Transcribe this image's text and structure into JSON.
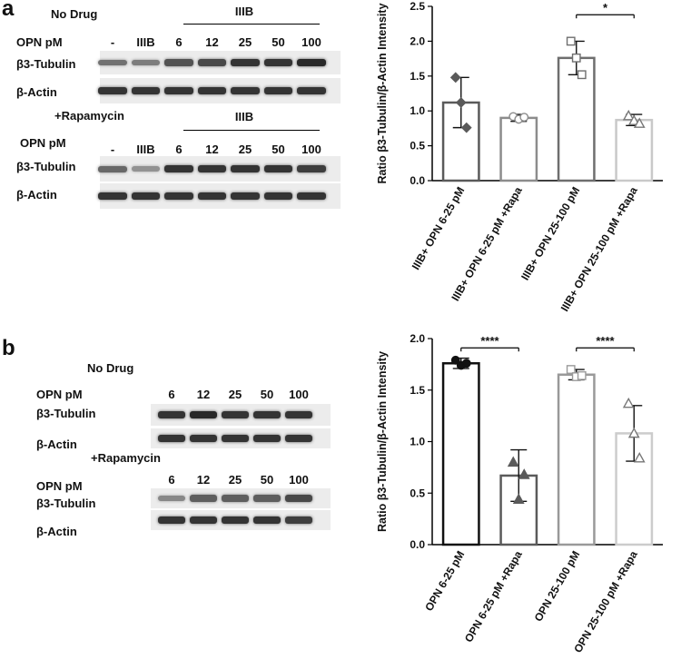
{
  "panel_a": {
    "letter": "a",
    "blot_top": {
      "title": "No Drug",
      "bracket_label": "IIIB",
      "row_opn": "OPN pM",
      "lanes": [
        "-",
        "IIIB",
        "6",
        "12",
        "25",
        "50",
        "100"
      ],
      "row_tubulin": "β3-Tubulin",
      "row_actin": "β-Actin",
      "tubulin_intensity": [
        0.55,
        0.5,
        0.7,
        0.75,
        0.85,
        0.85,
        0.9
      ],
      "actin_intensity": [
        0.85,
        0.85,
        0.85,
        0.85,
        0.85,
        0.85,
        0.85
      ]
    },
    "blot_bottom": {
      "title": "+Rapamycin",
      "bracket_label": "IIIB",
      "row_opn": "OPN pM",
      "lanes": [
        "-",
        "IIIB",
        "6",
        "12",
        "25",
        "50",
        "100"
      ],
      "row_tubulin": "β3-Tubulin",
      "row_actin": "β-Actin",
      "tubulin_intensity": [
        0.6,
        0.4,
        0.85,
        0.85,
        0.85,
        0.85,
        0.8
      ],
      "actin_intensity": [
        0.85,
        0.85,
        0.85,
        0.85,
        0.85,
        0.85,
        0.85
      ]
    }
  },
  "panel_b": {
    "letter": "b",
    "blot_top": {
      "title": "No Drug",
      "row_opn": "OPN pM",
      "lanes": [
        "6",
        "12",
        "25",
        "50",
        "100"
      ],
      "row_tubulin": "β3-Tubulin",
      "row_actin": "β-Actin",
      "tubulin_intensity": [
        0.85,
        0.9,
        0.85,
        0.85,
        0.85
      ],
      "actin_intensity": [
        0.85,
        0.85,
        0.85,
        0.85,
        0.85
      ]
    },
    "blot_bottom": {
      "title": "+Rapamycin",
      "row_opn": "OPN pM",
      "lanes": [
        "6",
        "12",
        "25",
        "50",
        "100"
      ],
      "row_tubulin": "β3-Tubulin",
      "row_actin": "β-Actin",
      "tubulin_intensity": [
        0.45,
        0.65,
        0.65,
        0.65,
        0.75
      ],
      "actin_intensity": [
        0.85,
        0.85,
        0.85,
        0.85,
        0.8
      ]
    }
  },
  "chart_data": [
    {
      "type": "bar",
      "ylabel": "Ratio β3-Tubulin/β-Actin Intensity",
      "ylim": [
        0,
        2.5
      ],
      "yticks": [
        "0.0",
        "0.5",
        "1.0",
        "1.5",
        "2.0",
        "2.5"
      ],
      "categories": [
        "IIIB+ OPN 6-25 pM",
        "IIIB+ OPN 6-25 pM +Rapa",
        "IIIB+ OPN 25-100 pM",
        "IIIB+ OPN 25-100 pM +Rapa"
      ],
      "values": [
        1.12,
        0.9,
        1.76,
        0.87
      ],
      "error": [
        0.36,
        0.05,
        0.24,
        0.08
      ],
      "points": [
        [
          1.48,
          1.12,
          0.76
        ],
        [
          0.92,
          0.88,
          0.91
        ],
        [
          2.0,
          1.76,
          1.52
        ],
        [
          0.93,
          0.86,
          0.82
        ]
      ],
      "markers": [
        "diamond",
        "circle",
        "square",
        "triangle"
      ],
      "colors": [
        "#5a5a5a",
        "#8c8c8c",
        "#6e6e6e",
        "#c9c9c9"
      ],
      "significance": [
        {
          "from": 2,
          "to": 3,
          "label": "*",
          "y": 2.38
        }
      ],
      "grid": false
    },
    {
      "type": "bar",
      "ylabel": "Ratio β3-Tubulin/β-Actin Intensity",
      "ylim": [
        0,
        2.0
      ],
      "yticks": [
        "0.0",
        "0.5",
        "1.0",
        "1.5",
        "2.0"
      ],
      "categories": [
        "OPN 6-25 pM",
        "OPN 6-25 pM +Rapa",
        "OPN 25-100 pM",
        "OPN 25-100 pM +Rapa"
      ],
      "values": [
        1.76,
        0.67,
        1.65,
        1.08
      ],
      "error": [
        0.05,
        0.25,
        0.05,
        0.27
      ],
      "points": [
        [
          1.79,
          1.74,
          1.76
        ],
        [
          0.8,
          0.44,
          0.68
        ],
        [
          1.7,
          1.63,
          1.64
        ],
        [
          1.37,
          1.08,
          0.84
        ]
      ],
      "markers": [
        "circle",
        "triangle",
        "square",
        "triangle"
      ],
      "colors": [
        "#111111",
        "#5a5a5a",
        "#999999",
        "#cccccc"
      ],
      "significance": [
        {
          "from": 0,
          "to": 1,
          "label": "****",
          "y": 1.91
        },
        {
          "from": 2,
          "to": 3,
          "label": "****",
          "y": 1.91
        }
      ],
      "grid": false
    }
  ]
}
